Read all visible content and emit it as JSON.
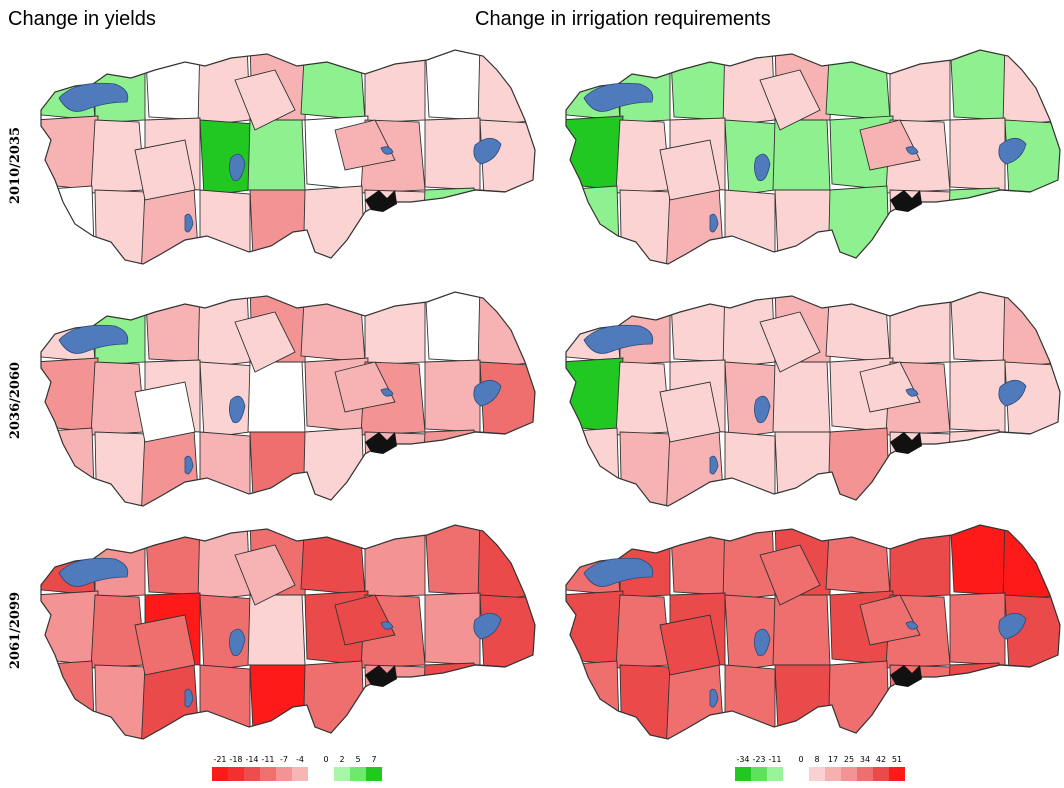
{
  "titles": {
    "left": "Change in yields",
    "right": "Change in irrigation requirements"
  },
  "rows": [
    "2010/2035",
    "2036/2060",
    "2061/2099"
  ],
  "colors": {
    "lake": "#4f7bbd",
    "outline": "#333333",
    "white": "#ffffff",
    "pink1": "#fbd3d3",
    "pink2": "#f7b3b3",
    "pink3": "#f39393",
    "red1": "#ef6e6e",
    "red2": "#ea4a4a",
    "red3": "#ff1a1a",
    "green1": "#8ef08e",
    "green2": "#55e055",
    "green3": "#22c822"
  },
  "legend_yields": {
    "labels_red": [
      "-21",
      "-18",
      "-14",
      "-11",
      "-7",
      "-4"
    ],
    "colors_red": [
      "#ff1a1a",
      "#f32f2f",
      "#ee4d4d",
      "#f06f6f",
      "#f39393",
      "#f7b6b6"
    ],
    "labels_green": [
      "0",
      "2",
      "5",
      "7"
    ],
    "colors_green": [
      "#ffffff",
      "#a8f5a8",
      "#6ee86e",
      "#22c822"
    ]
  },
  "legend_irrigation": {
    "labels_green": [
      "-34",
      "-23",
      "-11"
    ],
    "colors_green": [
      "#22c822",
      "#5fe05f",
      "#9af29a"
    ],
    "labels_red": [
      "0",
      "8",
      "17",
      "25",
      "34",
      "42",
      "51"
    ],
    "colors_red": [
      "#ffffff",
      "#fbd0d0",
      "#f7b0b0",
      "#f39393",
      "#ee6f6f",
      "#ea4a4a",
      "#ff1a1a"
    ]
  },
  "maps": {
    "yields": [
      [
        "green1",
        "green1",
        "white",
        "pink1",
        "pink2",
        "green1",
        "pink1",
        "white",
        "pink1",
        "pink2",
        "pink1",
        "pink1",
        "green3",
        "green1",
        "white",
        "pink2",
        "pink1",
        "pink1",
        "white",
        "pink1",
        "pink2",
        "pink1",
        "pink3",
        "pink1",
        "pink1",
        "green1",
        "white",
        "pink1",
        "pink2",
        "pink1"
      ],
      [
        "pink1",
        "green1",
        "pink2",
        "pink1",
        "pink3",
        "pink2",
        "pink1",
        "white",
        "pink2",
        "pink3",
        "pink2",
        "pink1",
        "pink1",
        "white",
        "pink2",
        "pink3",
        "pink2",
        "red1",
        "pink2",
        "pink1",
        "pink3",
        "pink2",
        "red1",
        "pink1",
        "pink2",
        "pink3",
        "pink2",
        "pink1",
        "pink2",
        "white"
      ],
      [
        "red2",
        "pink3",
        "red1",
        "pink2",
        "red1",
        "red2",
        "pink3",
        "red1",
        "red2",
        "pink3",
        "red1",
        "red3",
        "red1",
        "pink1",
        "red2",
        "red1",
        "pink3",
        "red2",
        "red1",
        "pink3",
        "red2",
        "red1",
        "red3",
        "red1",
        "pink3",
        "red2",
        "red1",
        "pink2",
        "red2",
        "red1"
      ]
    ],
    "irrigation": [
      [
        "green1",
        "green1",
        "green1",
        "pink1",
        "pink2",
        "green1",
        "pink1",
        "green1",
        "pink1",
        "green3",
        "pink1",
        "pink1",
        "green1",
        "green1",
        "green1",
        "pink1",
        "pink1",
        "green1",
        "green1",
        "pink1",
        "pink2",
        "pink1",
        "pink1",
        "green1",
        "pink1",
        "green1",
        "pink1",
        "pink1",
        "pink2",
        "pink1"
      ],
      [
        "pink1",
        "pink2",
        "pink1",
        "pink1",
        "pink2",
        "pink1",
        "pink1",
        "pink1",
        "pink2",
        "green3",
        "pink1",
        "pink1",
        "pink2",
        "pink1",
        "pink1",
        "pink2",
        "pink1",
        "pink1",
        "pink1",
        "pink2",
        "pink2",
        "pink1",
        "pink1",
        "pink3",
        "pink1",
        "pink1",
        "pink2",
        "pink1",
        "pink1",
        "pink1"
      ],
      [
        "red1",
        "red2",
        "red1",
        "red1",
        "red2",
        "red1",
        "red2",
        "red3",
        "red3",
        "red2",
        "red1",
        "red2",
        "red1",
        "red1",
        "red2",
        "red1",
        "red1",
        "red2",
        "red1",
        "red2",
        "red1",
        "red1",
        "red2",
        "red1",
        "red1",
        "red2",
        "red1",
        "red1",
        "red1",
        "red2"
      ]
    ]
  }
}
